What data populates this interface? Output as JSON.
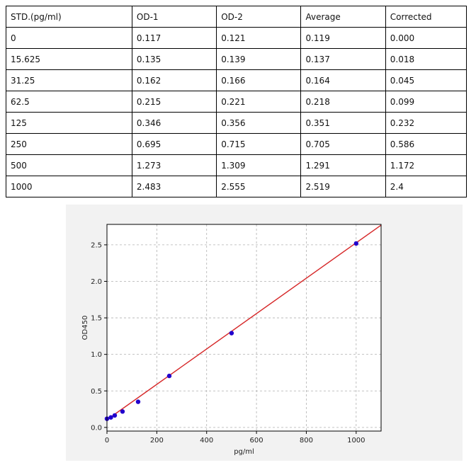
{
  "table": {
    "headers": [
      "STD.(pg/ml)",
      "OD-1",
      "OD-2",
      "Average",
      "Corrected"
    ],
    "rows": [
      [
        "0",
        "0.117",
        "0.121",
        "0.119",
        "0.000"
      ],
      [
        "15.625",
        "0.135",
        "0.139",
        "0.137",
        "0.018"
      ],
      [
        "31.25",
        "0.162",
        "0.166",
        "0.164",
        "0.045"
      ],
      [
        "62.5",
        "0.215",
        "0.221",
        "0.218",
        "0.099"
      ],
      [
        "125",
        "0.346",
        "0.356",
        "0.351",
        "0.232"
      ],
      [
        "250",
        "0.695",
        "0.715",
        "0.705",
        "0.586"
      ],
      [
        "500",
        "1.273",
        "1.309",
        "1.291",
        "1.172"
      ],
      [
        "1000",
        "2.483",
        "2.555",
        "2.519",
        "2.4"
      ]
    ]
  },
  "chart_data": {
    "type": "scatter",
    "title": "",
    "xlabel": "pg/ml",
    "ylabel": "OD450",
    "xlim": [
      0,
      1100
    ],
    "ylim": [
      -0.05,
      2.78
    ],
    "xticks": [
      0,
      200,
      400,
      600,
      800,
      1000
    ],
    "yticks": [
      0.0,
      0.5,
      1.0,
      1.5,
      2.0,
      2.5
    ],
    "xtick_labels": [
      "0",
      "200",
      "400",
      "600",
      "800",
      "1000"
    ],
    "ytick_labels": [
      "0.0",
      "0.5",
      "1.0",
      "1.5",
      "2.0",
      "2.5"
    ],
    "grid": true,
    "points": {
      "x": [
        0,
        15.625,
        31.25,
        62.5,
        125,
        250,
        500,
        1000
      ],
      "y": [
        0.119,
        0.137,
        0.164,
        0.218,
        0.351,
        0.705,
        1.291,
        2.519
      ],
      "color": "#2200cc"
    },
    "fit_line": {
      "x": [
        0,
        1100
      ],
      "y": [
        0.105,
        2.77
      ],
      "color": "#d62728"
    }
  }
}
